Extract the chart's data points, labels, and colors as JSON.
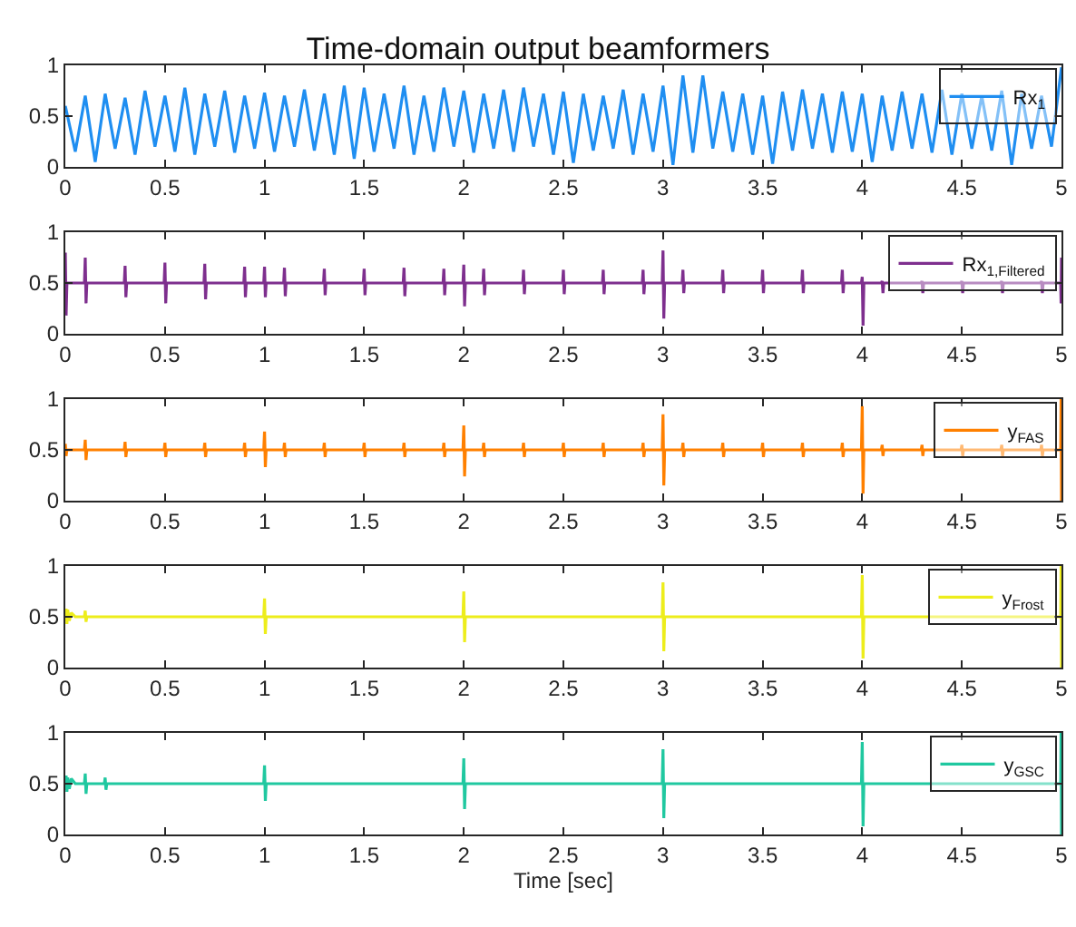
{
  "chart_data": [
    {
      "type": "line",
      "title": "Time-domain output beamformers",
      "xlim": [
        0,
        5
      ],
      "ylim": [
        0,
        1
      ],
      "xticks": [
        0,
        0.5,
        1,
        1.5,
        2,
        2.5,
        3,
        3.5,
        4,
        4.5,
        5
      ],
      "yticks": [
        0,
        0.5,
        1
      ],
      "legend": "top right",
      "x": [
        0,
        0.05,
        0.1,
        0.15,
        0.2,
        0.25,
        0.3,
        0.35,
        0.4,
        0.45,
        0.5,
        0.55,
        0.6,
        0.65,
        0.7,
        0.75,
        0.8,
        0.85,
        0.9,
        0.95,
        1,
        1.05,
        1.1,
        1.15,
        1.2,
        1.25,
        1.3,
        1.35,
        1.4,
        1.45,
        1.5,
        1.55,
        1.6,
        1.65,
        1.7,
        1.75,
        1.8,
        1.85,
        1.9,
        1.95,
        2,
        2.05,
        2.1,
        2.15,
        2.2,
        2.25,
        2.3,
        2.35,
        2.4,
        2.45,
        2.5,
        2.55,
        2.6,
        2.65,
        2.7,
        2.75,
        2.8,
        2.85,
        2.9,
        2.95,
        3,
        3.05,
        3.1,
        3.15,
        3.2,
        3.25,
        3.3,
        3.35,
        3.4,
        3.45,
        3.5,
        3.55,
        3.6,
        3.65,
        3.7,
        3.75,
        3.8,
        3.85,
        3.9,
        3.95,
        4,
        4.05,
        4.1,
        4.15,
        4.2,
        4.25,
        4.3,
        4.35,
        4.4,
        4.45,
        4.5,
        4.55,
        4.6,
        4.65,
        4.7,
        4.75,
        4.8,
        4.85,
        4.9,
        4.95,
        5
      ],
      "series": [
        {
          "name": "Rx$_{1}$",
          "color": "#1f8ef1",
          "values": [
            0.6,
            0.15,
            0.7,
            0.05,
            0.72,
            0.18,
            0.68,
            0.12,
            0.75,
            0.2,
            0.7,
            0.15,
            0.78,
            0.12,
            0.72,
            0.2,
            0.75,
            0.14,
            0.7,
            0.18,
            0.73,
            0.15,
            0.7,
            0.2,
            0.76,
            0.16,
            0.72,
            0.12,
            0.8,
            0.08,
            0.78,
            0.15,
            0.72,
            0.18,
            0.8,
            0.12,
            0.7,
            0.15,
            0.78,
            0.2,
            0.75,
            0.14,
            0.72,
            0.18,
            0.76,
            0.15,
            0.78,
            0.2,
            0.72,
            0.12,
            0.74,
            0.04,
            0.72,
            0.16,
            0.7,
            0.18,
            0.76,
            0.12,
            0.72,
            0.15,
            0.8,
            0.02,
            0.9,
            0.14,
            0.9,
            0.18,
            0.74,
            0.15,
            0.72,
            0.12,
            0.7,
            0.03,
            0.74,
            0.16,
            0.76,
            0.18,
            0.72,
            0.14,
            0.74,
            0.15,
            0.72,
            0.05,
            0.7,
            0.16,
            0.74,
            0.18,
            0.72,
            0.14,
            0.76,
            0.12,
            0.72,
            0.18,
            0.7,
            0.16,
            0.75,
            0.02,
            0.72,
            0.18,
            0.7,
            0.2,
            0.98
          ]
        }
      ]
    },
    {
      "type": "line",
      "xlim": [
        0,
        5
      ],
      "ylim": [
        0,
        1
      ],
      "xticks": [
        0,
        0.5,
        1,
        1.5,
        2,
        2.5,
        3,
        3.5,
        4,
        4.5,
        5
      ],
      "yticks": [
        0,
        0.5,
        1
      ],
      "legend": "top right",
      "x": [
        0,
        0.004,
        0.008,
        0.096,
        0.1,
        0.104,
        0.108,
        0.296,
        0.3,
        0.304,
        0.308,
        0.496,
        0.5,
        0.504,
        0.508,
        0.696,
        0.7,
        0.704,
        0.708,
        0.896,
        0.9,
        0.904,
        0.908,
        0.996,
        1,
        1.004,
        1.008,
        1.096,
        1.1,
        1.104,
        1.108,
        1.296,
        1.3,
        1.304,
        1.308,
        1.496,
        1.5,
        1.504,
        1.508,
        1.696,
        1.7,
        1.704,
        1.708,
        1.896,
        1.9,
        1.904,
        1.908,
        1.996,
        2,
        2.004,
        2.008,
        2.096,
        2.1,
        2.104,
        2.108,
        2.296,
        2.3,
        2.304,
        2.308,
        2.496,
        2.5,
        2.504,
        2.508,
        2.696,
        2.7,
        2.704,
        2.708,
        2.896,
        2.9,
        2.904,
        2.908,
        2.996,
        3,
        3.004,
        3.008,
        3.096,
        3.1,
        3.104,
        3.108,
        3.296,
        3.3,
        3.304,
        3.308,
        3.496,
        3.5,
        3.504,
        3.508,
        3.696,
        3.7,
        3.704,
        3.708,
        3.896,
        3.9,
        3.904,
        3.908,
        3.996,
        4,
        4.004,
        4.008,
        4.096,
        4.1,
        4.104,
        4.108,
        4.296,
        4.3,
        4.304,
        4.308,
        4.496,
        4.5,
        4.504,
        4.508,
        4.696,
        4.7,
        4.704,
        4.708,
        4.896,
        4.9,
        4.904,
        4.908,
        4.996,
        4.998,
        5
      ],
      "series": [
        {
          "name": "Rx$_{1,Filtered}$",
          "color": "#7e2f8e",
          "values": [
            0.8,
            0.18,
            0.5,
            0.5,
            0.75,
            0.3,
            0.5,
            0.5,
            0.67,
            0.36,
            0.5,
            0.5,
            0.7,
            0.3,
            0.5,
            0.5,
            0.69,
            0.34,
            0.5,
            0.5,
            0.66,
            0.36,
            0.5,
            0.5,
            0.66,
            0.36,
            0.5,
            0.5,
            0.65,
            0.37,
            0.5,
            0.5,
            0.64,
            0.38,
            0.5,
            0.5,
            0.64,
            0.38,
            0.5,
            0.5,
            0.65,
            0.37,
            0.5,
            0.5,
            0.64,
            0.38,
            0.5,
            0.5,
            0.68,
            0.27,
            0.5,
            0.5,
            0.64,
            0.38,
            0.5,
            0.5,
            0.63,
            0.39,
            0.5,
            0.5,
            0.63,
            0.39,
            0.5,
            0.5,
            0.63,
            0.39,
            0.5,
            0.5,
            0.63,
            0.39,
            0.5,
            0.5,
            0.82,
            0.15,
            0.5,
            0.5,
            0.63,
            0.4,
            0.5,
            0.5,
            0.63,
            0.4,
            0.5,
            0.5,
            0.63,
            0.4,
            0.5,
            0.5,
            0.63,
            0.4,
            0.5,
            0.5,
            0.63,
            0.4,
            0.5,
            0.5,
            0.56,
            0.08,
            0.5,
            0.5,
            0.52,
            0.4,
            0.5,
            0.5,
            0.52,
            0.4,
            0.5,
            0.5,
            0.52,
            0.4,
            0.5,
            0.5,
            0.52,
            0.4,
            0.5,
            0.5,
            0.52,
            0.4,
            0.5,
            0.5,
            0.3,
            0.75
          ]
        }
      ]
    },
    {
      "type": "line",
      "xlim": [
        0,
        5
      ],
      "ylim": [
        0,
        1
      ],
      "xticks": [
        0,
        0.5,
        1,
        1.5,
        2,
        2.5,
        3,
        3.5,
        4,
        4.5,
        5
      ],
      "yticks": [
        0,
        0.5,
        1
      ],
      "legend": "top right",
      "x": [
        0,
        0.004,
        0.008,
        0.096,
        0.1,
        0.104,
        0.108,
        0.296,
        0.3,
        0.304,
        0.308,
        0.496,
        0.5,
        0.504,
        0.508,
        0.696,
        0.7,
        0.704,
        0.708,
        0.896,
        0.9,
        0.904,
        0.908,
        0.996,
        1,
        1.004,
        1.008,
        1.096,
        1.1,
        1.104,
        1.108,
        1.296,
        1.3,
        1.304,
        1.308,
        1.496,
        1.5,
        1.504,
        1.508,
        1.696,
        1.7,
        1.704,
        1.708,
        1.896,
        1.9,
        1.904,
        1.908,
        1.996,
        2,
        2.004,
        2.008,
        2.096,
        2.1,
        2.104,
        2.108,
        2.296,
        2.3,
        2.304,
        2.308,
        2.496,
        2.5,
        2.504,
        2.508,
        2.696,
        2.7,
        2.704,
        2.708,
        2.896,
        2.9,
        2.904,
        2.908,
        2.996,
        3,
        3.004,
        3.008,
        3.096,
        3.1,
        3.104,
        3.108,
        3.296,
        3.3,
        3.304,
        3.308,
        3.496,
        3.5,
        3.504,
        3.508,
        3.696,
        3.7,
        3.704,
        3.708,
        3.896,
        3.9,
        3.904,
        3.908,
        3.996,
        4,
        4.004,
        4.008,
        4.096,
        4.1,
        4.104,
        4.108,
        4.296,
        4.3,
        4.304,
        4.308,
        4.496,
        4.5,
        4.504,
        4.508,
        4.696,
        4.7,
        4.704,
        4.708,
        4.896,
        4.9,
        4.904,
        4.908,
        4.996,
        4.998,
        5
      ],
      "series": [
        {
          "name": "y$_{FAS}$",
          "color": "#ff8000",
          "values": [
            0.56,
            0.44,
            0.5,
            0.5,
            0.6,
            0.4,
            0.5,
            0.5,
            0.58,
            0.43,
            0.5,
            0.5,
            0.57,
            0.43,
            0.5,
            0.5,
            0.57,
            0.43,
            0.5,
            0.5,
            0.57,
            0.43,
            0.5,
            0.5,
            0.68,
            0.33,
            0.5,
            0.5,
            0.57,
            0.43,
            0.5,
            0.5,
            0.57,
            0.43,
            0.5,
            0.5,
            0.57,
            0.43,
            0.5,
            0.5,
            0.57,
            0.43,
            0.5,
            0.5,
            0.57,
            0.43,
            0.5,
            0.5,
            0.74,
            0.24,
            0.5,
            0.5,
            0.57,
            0.43,
            0.5,
            0.5,
            0.57,
            0.43,
            0.5,
            0.5,
            0.57,
            0.43,
            0.5,
            0.5,
            0.57,
            0.43,
            0.5,
            0.5,
            0.57,
            0.43,
            0.5,
            0.5,
            0.85,
            0.15,
            0.5,
            0.5,
            0.57,
            0.43,
            0.5,
            0.5,
            0.57,
            0.43,
            0.5,
            0.5,
            0.57,
            0.43,
            0.5,
            0.5,
            0.57,
            0.43,
            0.5,
            0.5,
            0.57,
            0.43,
            0.5,
            0.5,
            0.93,
            0.07,
            0.5,
            0.5,
            0.55,
            0.44,
            0.5,
            0.5,
            0.55,
            0.44,
            0.5,
            0.5,
            0.55,
            0.44,
            0.5,
            0.5,
            0.55,
            0.44,
            0.5,
            0.5,
            0.55,
            0.44,
            0.5,
            0.5,
            1,
            0
          ]
        }
      ]
    },
    {
      "type": "line",
      "xlim": [
        0,
        5
      ],
      "ylim": [
        0,
        1
      ],
      "xticks": [
        0,
        0.5,
        1,
        1.5,
        2,
        2.5,
        3,
        3.5,
        4,
        4.5,
        5
      ],
      "yticks": [
        0,
        0.5,
        1
      ],
      "legend": "top right",
      "x": [
        0,
        0.004,
        0.008,
        0.012,
        0.02,
        0.03,
        0.05,
        0.096,
        0.1,
        0.104,
        0.108,
        0.2,
        0.996,
        1,
        1.004,
        1.008,
        1.996,
        2,
        2.004,
        2.008,
        2.996,
        3,
        3.004,
        3.008,
        3.996,
        4,
        4.004,
        4.008,
        4.996,
        4.998,
        5
      ],
      "series": [
        {
          "name": "y$_{Frost}$",
          "color": "#eded1b",
          "values": [
            0.45,
            0.58,
            0.43,
            0.57,
            0.46,
            0.54,
            0.5,
            0.5,
            0.56,
            0.45,
            0.5,
            0.5,
            0.5,
            0.68,
            0.33,
            0.5,
            0.5,
            0.75,
            0.25,
            0.5,
            0.5,
            0.84,
            0.16,
            0.5,
            0.5,
            0.91,
            0.09,
            0.5,
            0.5,
            1,
            0
          ]
        }
      ]
    },
    {
      "type": "line",
      "xlabel": "Time [sec]",
      "xlim": [
        0,
        5
      ],
      "ylim": [
        0,
        1
      ],
      "xticks": [
        0,
        0.5,
        1,
        1.5,
        2,
        2.5,
        3,
        3.5,
        4,
        4.5,
        5
      ],
      "yticks": [
        0,
        0.5,
        1
      ],
      "legend": "top right",
      "x": [
        0,
        0.004,
        0.008,
        0.012,
        0.02,
        0.03,
        0.05,
        0.096,
        0.1,
        0.104,
        0.108,
        0.196,
        0.2,
        0.204,
        0.208,
        0.3,
        0.996,
        1,
        1.004,
        1.008,
        1.996,
        2,
        2.004,
        2.008,
        2.996,
        3,
        3.004,
        3.008,
        3.996,
        4,
        4.004,
        4.008,
        4.996,
        4.998,
        5
      ],
      "series": [
        {
          "name": "y$_{GSC}$",
          "color": "#20c8a0",
          "values": [
            0.43,
            0.58,
            0.42,
            0.56,
            0.45,
            0.55,
            0.5,
            0.5,
            0.6,
            0.4,
            0.5,
            0.5,
            0.56,
            0.44,
            0.5,
            0.5,
            0.5,
            0.68,
            0.33,
            0.5,
            0.5,
            0.75,
            0.25,
            0.5,
            0.5,
            0.84,
            0.16,
            0.5,
            0.5,
            0.91,
            0.08,
            0.5,
            0.5,
            1,
            0
          ]
        }
      ]
    }
  ]
}
